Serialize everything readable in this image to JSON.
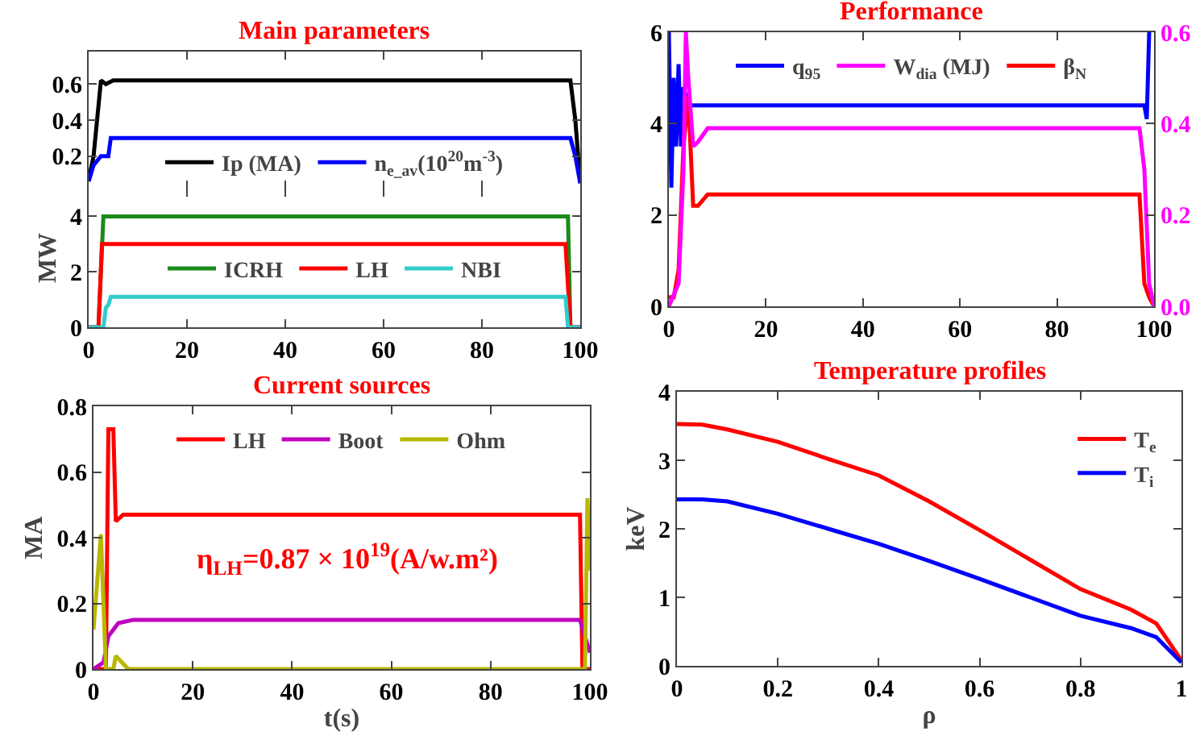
{
  "chart_data": [
    {
      "type": "line",
      "title": "Main parameters",
      "x": [
        0,
        1,
        2.5,
        3.5,
        5,
        98,
        99,
        100
      ],
      "xlim": [
        0,
        100
      ],
      "xticks": [
        0,
        20,
        40,
        60,
        80,
        100
      ],
      "ylim": [
        0.02,
        0.78
      ],
      "yticks": [
        0.2,
        0.4,
        0.6
      ],
      "tick_labels": "y",
      "legend": "bottom",
      "series": [
        {
          "name": "Ip (MA)",
          "color": "#000000",
          "values": [
            0.07,
            0.2,
            0.62,
            0.6,
            0.62,
            0.62,
            0.4,
            0.05
          ]
        },
        {
          "name": "n$_{e_av}$(10$^{20}$m$^{-3}$)",
          "color": "#0000ff",
          "x": [
            0,
            1,
            2.5,
            4,
            4.5,
            98,
            99,
            100
          ],
          "values": [
            0.06,
            0.15,
            0.2,
            0.2,
            0.3,
            0.3,
            0.2,
            0.05
          ]
        }
      ]
    },
    {
      "type": "line",
      "ylabel": "MW",
      "xlim": [
        0,
        100
      ],
      "xticks": [
        0,
        20,
        40,
        60,
        80,
        100
      ],
      "ylim": [
        0,
        5
      ],
      "yticks": [
        0,
        2,
        4
      ],
      "legend": "center",
      "series": [
        {
          "name": "ICRH",
          "color": "#1a8a1a",
          "x": [
            0,
            2,
            3,
            97.5,
            98,
            100
          ],
          "values": [
            0,
            0,
            4,
            4,
            0,
            0
          ]
        },
        {
          "name": "LH",
          "color": "#ff0000",
          "x": [
            0,
            2,
            2.7,
            97,
            98,
            100
          ],
          "values": [
            0,
            0,
            3,
            3,
            0,
            0
          ]
        },
        {
          "name": "NBI",
          "color": "#33cccc",
          "x": [
            0,
            3,
            3.5,
            4,
            4.5,
            97,
            97.5,
            100
          ],
          "values": [
            0,
            0,
            0.7,
            0.8,
            1.1,
            1.1,
            0,
            0
          ]
        }
      ]
    },
    {
      "type": "line",
      "title": "Performance",
      "xlim": [
        0,
        100
      ],
      "xticks": [
        0,
        20,
        40,
        60,
        80,
        100
      ],
      "ylim": [
        0,
        6
      ],
      "yticks": [
        0,
        2,
        4,
        6
      ],
      "y2lim": [
        0,
        0.6
      ],
      "y2ticks": [
        {
          "value": 0,
          "label": "0.0"
        },
        0.2,
        0.4,
        0.6
      ],
      "legend": "top",
      "series": [
        {
          "name": "q$_{95}$",
          "color": "#0000ff",
          "x": [
            0,
            0.5,
            1,
            1.5,
            2,
            2.5,
            3,
            4,
            98,
            98.5,
            99
          ],
          "values": [
            6,
            2.6,
            5,
            3.5,
            5.3,
            3.5,
            4.8,
            4.4,
            4.4,
            4.1,
            6
          ]
        },
        {
          "name": "W$_{dia}$ (MJ)",
          "color": "#ff00ff",
          "axis": "y2",
          "x": [
            0,
            2,
            3,
            3.5,
            4,
            5,
            6,
            8,
            97,
            98,
            99,
            100
          ],
          "values": [
            0,
            0.05,
            0.3,
            0.6,
            0.5,
            0.35,
            0.36,
            0.39,
            0.39,
            0.3,
            0.05,
            0
          ]
        },
        {
          "name": "β$_{N}$",
          "color": "#ff0000",
          "x": [
            0,
            1,
            2,
            3,
            4,
            5,
            6,
            8,
            97,
            98,
            99,
            100
          ],
          "values": [
            0.2,
            0.2,
            0.8,
            3.5,
            4.6,
            2.2,
            2.2,
            2.45,
            2.45,
            0.5,
            0.2,
            0
          ]
        }
      ]
    },
    {
      "type": "line",
      "title": "Current sources",
      "xlabel": "t(s)",
      "ylabel": "MA",
      "xlim": [
        0,
        100
      ],
      "xticks": [
        0,
        20,
        40,
        60,
        80,
        100
      ],
      "ylim": [
        0,
        0.8
      ],
      "yticks": [
        0,
        0.2,
        0.4,
        0.6,
        0.8
      ],
      "legend": "top",
      "annotations": [
        "η$_{LH}$=0.87 × 10$^{19}$(A/w.m²)"
      ],
      "series": [
        {
          "name": "LH",
          "color": "#ff0000",
          "x": [
            0,
            2.5,
            3,
            4,
            4.5,
            6,
            98,
            98.5,
            100
          ],
          "values": [
            0,
            0,
            0.73,
            0.73,
            0.45,
            0.47,
            0.47,
            0,
            0
          ]
        },
        {
          "name": "Boot",
          "color": "#bf00bf",
          "x": [
            0,
            2,
            3,
            5,
            8,
            98,
            99,
            100
          ],
          "values": [
            0,
            0.02,
            0.1,
            0.14,
            0.15,
            0.15,
            0.1,
            0.05
          ]
        },
        {
          "name": "Ohm",
          "color": "#b8b800",
          "x": [
            0,
            1.5,
            2.5,
            4,
            4.5,
            7,
            98,
            99,
            99.5,
            100
          ],
          "values": [
            0.12,
            0.41,
            0,
            0,
            0.04,
            0,
            0,
            0,
            0.52,
            0.3
          ]
        }
      ]
    },
    {
      "type": "line",
      "title": "Temperature profiles",
      "xlabel": "ρ",
      "ylabel": "keV",
      "x": [
        0,
        0.05,
        0.1,
        0.2,
        0.3,
        0.4,
        0.5,
        0.6,
        0.7,
        0.8,
        0.9,
        0.95,
        1
      ],
      "xlim": [
        0,
        1
      ],
      "xticks": [
        0,
        0.2,
        0.4,
        0.6,
        0.8,
        1
      ],
      "ylim": [
        0,
        4
      ],
      "yticks": [
        0,
        1,
        2,
        3,
        4
      ],
      "legend": "top right",
      "series": [
        {
          "name": "T$_{e}$",
          "color": "#ff0000",
          "values": [
            3.53,
            3.52,
            3.45,
            3.27,
            3.02,
            2.78,
            2.4,
            1.98,
            1.55,
            1.12,
            0.82,
            0.62,
            0.08
          ]
        },
        {
          "name": "T$_{i}$",
          "color": "#0000ff",
          "values": [
            2.43,
            2.43,
            2.4,
            2.22,
            2.0,
            1.78,
            1.53,
            1.27,
            1.0,
            0.73,
            0.55,
            0.42,
            0.05
          ]
        }
      ]
    }
  ]
}
